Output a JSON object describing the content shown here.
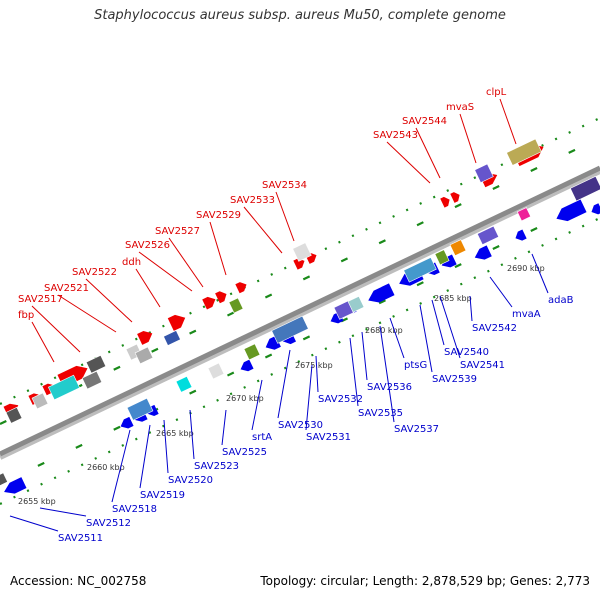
{
  "title": "Staphylococcus aureus subsp. aureus Mu50, complete genome",
  "footer": {
    "accession": "Accession: NC_002758",
    "summary": "Topology: circular; Length: 2,878,529 bp; Genes: 2,773"
  },
  "colors": {
    "upper_label": "#dd0000",
    "lower_label": "#0000cc",
    "backbone": "#8a8a8a",
    "dotted_guide": "#1a8a1a",
    "forward_gene": "#ee0000",
    "reverse_gene": "#0000ee"
  },
  "scale_labels": [
    "2655 kbp",
    "2660 kbp",
    "2665 kbp",
    "2670 kbp",
    "2675 kbp",
    "2680 kbp",
    "2685 kbp",
    "2690 kbp"
  ],
  "upper_genes": [
    "fbp",
    "SAV2517",
    "SAV2521",
    "SAV2522",
    "ddh",
    "SAV2526",
    "SAV2527",
    "SAV2529",
    "SAV2533",
    "SAV2534",
    "SAV2543",
    "SAV2544",
    "mvaS",
    "clpL"
  ],
  "lower_genes": [
    "SAV2511",
    "SAV2512",
    "SAV2518",
    "SAV2519",
    "SAV2520",
    "SAV2523",
    "SAV2525",
    "srtA",
    "SAV2530",
    "SAV2531",
    "SAV2532",
    "SAV2535",
    "SAV2536",
    "SAV2537",
    "ptsG",
    "SAV2539",
    "SAV2540",
    "SAV2541",
    "SAV2542",
    "mvaA",
    "adaB"
  ]
}
